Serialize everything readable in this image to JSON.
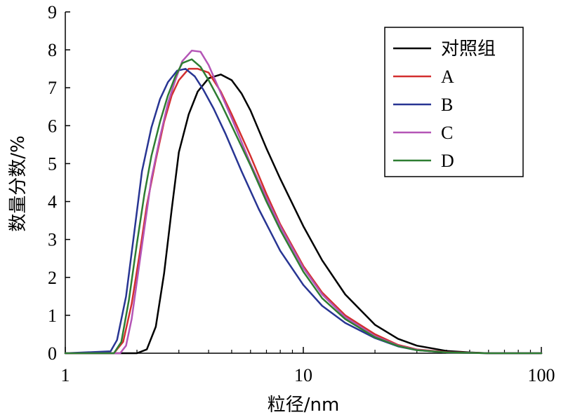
{
  "chart_data": {
    "type": "line",
    "xlabel": "粒径/nm",
    "ylabel": "数量分数/%",
    "x_scale": "log",
    "xlim": [
      1,
      100
    ],
    "ylim": [
      0,
      9
    ],
    "x_ticks": [
      1,
      10,
      100
    ],
    "x_tick_labels": [
      "1",
      "10",
      "100"
    ],
    "y_ticks": [
      0,
      1,
      2,
      3,
      4,
      5,
      6,
      7,
      8,
      9
    ],
    "y_tick_labels": [
      "0",
      "1",
      "2",
      "3",
      "4",
      "5",
      "6",
      "7",
      "8",
      "9"
    ],
    "grid": false,
    "legend": {
      "position": "top-right"
    },
    "series": [
      {
        "name": "对照组",
        "color": "#000000",
        "x": [
          1.0,
          2.0,
          2.2,
          2.4,
          2.6,
          2.8,
          3.0,
          3.3,
          3.6,
          4.0,
          4.5,
          5.0,
          5.5,
          6.0,
          7.0,
          8.0,
          10,
          12,
          15,
          20,
          25,
          30,
          40,
          50,
          60,
          80,
          100
        ],
        "y": [
          0.0,
          0.0,
          0.1,
          0.7,
          2.1,
          3.8,
          5.3,
          6.3,
          6.9,
          7.25,
          7.35,
          7.2,
          6.85,
          6.4,
          5.4,
          4.6,
          3.35,
          2.45,
          1.55,
          0.75,
          0.38,
          0.2,
          0.06,
          0.02,
          0.0,
          0.0,
          0.0
        ]
      },
      {
        "name": "A",
        "color": "#d32f2f",
        "x": [
          1.0,
          1.6,
          1.75,
          1.9,
          2.05,
          2.2,
          2.4,
          2.6,
          2.8,
          3.0,
          3.3,
          3.6,
          4.0,
          4.5,
          5.0,
          6.0,
          7.0,
          8.0,
          10,
          12,
          15,
          20,
          25,
          30,
          40,
          60,
          100
        ],
        "y": [
          0.0,
          0.0,
          0.3,
          1.3,
          2.6,
          3.9,
          5.1,
          6.1,
          6.8,
          7.2,
          7.5,
          7.5,
          7.4,
          6.9,
          6.3,
          5.2,
          4.2,
          3.4,
          2.3,
          1.6,
          1.0,
          0.5,
          0.22,
          0.1,
          0.03,
          0.0,
          0.0
        ]
      },
      {
        "name": "B",
        "color": "#283593",
        "x": [
          1.0,
          1.55,
          1.65,
          1.8,
          1.95,
          2.1,
          2.3,
          2.5,
          2.7,
          2.95,
          3.2,
          3.5,
          3.8,
          4.2,
          4.7,
          5.5,
          6.5,
          8.0,
          10,
          12,
          15,
          20,
          25,
          30,
          40,
          60,
          100
        ],
        "y": [
          0.0,
          0.05,
          0.35,
          1.5,
          3.2,
          4.8,
          5.95,
          6.7,
          7.15,
          7.45,
          7.5,
          7.3,
          6.95,
          6.45,
          5.8,
          4.8,
          3.8,
          2.7,
          1.8,
          1.25,
          0.8,
          0.4,
          0.18,
          0.08,
          0.02,
          0.0,
          0.0
        ]
      },
      {
        "name": "C",
        "color": "#b455b6",
        "x": [
          1.0,
          1.7,
          1.8,
          1.9,
          2.0,
          2.15,
          2.3,
          2.5,
          2.7,
          2.9,
          3.1,
          3.4,
          3.7,
          4.0,
          4.4,
          5.0,
          6.0,
          7.0,
          8.0,
          10,
          12,
          15,
          20,
          25,
          30,
          40,
          60,
          100
        ],
        "y": [
          0.0,
          0.0,
          0.2,
          0.9,
          1.9,
          3.3,
          4.6,
          5.7,
          6.6,
          7.2,
          7.7,
          7.98,
          7.95,
          7.6,
          7.0,
          6.2,
          5.0,
          4.1,
          3.35,
          2.25,
          1.55,
          0.95,
          0.45,
          0.2,
          0.09,
          0.02,
          0.0,
          0.0
        ]
      },
      {
        "name": "D",
        "color": "#2e7d32",
        "x": [
          1.0,
          1.6,
          1.72,
          1.85,
          2.0,
          2.15,
          2.3,
          2.5,
          2.7,
          2.9,
          3.1,
          3.4,
          3.7,
          4.0,
          4.5,
          5.0,
          6.0,
          7.0,
          8.0,
          10,
          12,
          15,
          20,
          25,
          30,
          40,
          60,
          100
        ],
        "y": [
          0.0,
          0.0,
          0.3,
          1.4,
          2.9,
          4.2,
          5.2,
          6.1,
          6.8,
          7.3,
          7.65,
          7.75,
          7.55,
          7.2,
          6.6,
          6.0,
          4.95,
          4.0,
          3.25,
          2.15,
          1.45,
          0.9,
          0.42,
          0.19,
          0.08,
          0.02,
          0.0,
          0.0
        ]
      }
    ]
  }
}
